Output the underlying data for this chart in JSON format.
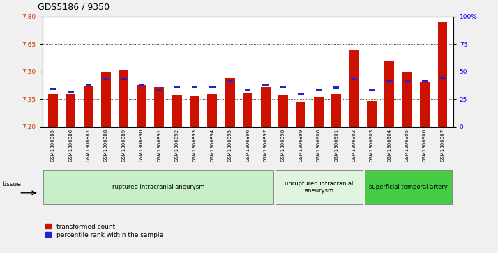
{
  "title": "GDS5186 / 9350",
  "samples": [
    "GSM1306885",
    "GSM1306886",
    "GSM1306887",
    "GSM1306888",
    "GSM1306889",
    "GSM1306890",
    "GSM1306891",
    "GSM1306892",
    "GSM1306893",
    "GSM1306894",
    "GSM1306895",
    "GSM1306896",
    "GSM1306897",
    "GSM1306898",
    "GSM1306899",
    "GSM1306900",
    "GSM1306901",
    "GSM1306902",
    "GSM1306903",
    "GSM1306904",
    "GSM1306905",
    "GSM1306906",
    "GSM1306907"
  ],
  "red_values": [
    7.375,
    7.375,
    7.42,
    7.495,
    7.505,
    7.425,
    7.415,
    7.37,
    7.365,
    7.375,
    7.465,
    7.38,
    7.415,
    7.37,
    7.335,
    7.36,
    7.375,
    7.615,
    7.34,
    7.56,
    7.495,
    7.445,
    7.77
  ],
  "blue_percentiles": [
    33,
    30,
    37,
    42,
    42,
    37,
    32,
    35,
    35,
    35,
    40,
    32,
    37,
    35,
    28,
    32,
    34,
    42,
    32,
    40,
    40,
    40,
    43
  ],
  "ylim": [
    7.2,
    7.8
  ],
  "yticks_left": [
    7.2,
    7.35,
    7.5,
    7.65,
    7.8
  ],
  "yticks_right": [
    0,
    25,
    50,
    75,
    100
  ],
  "ytick_labels_right": [
    "0",
    "25",
    "50",
    "75",
    "100%"
  ],
  "groups": [
    {
      "label": "ruptured intracranial aneurysm",
      "start": 0,
      "end": 13,
      "color": "#c8f0c8"
    },
    {
      "label": "unruptured intracranial\naneurysm",
      "start": 13,
      "end": 18,
      "color": "#e0f5e0"
    },
    {
      "label": "superficial temporal artery",
      "start": 18,
      "end": 23,
      "color": "#44cc44"
    }
  ],
  "red_color": "#cc1100",
  "blue_color": "#2222cc",
  "bar_width": 0.55,
  "tissue_label": "tissue",
  "legend_red": "transformed count",
  "legend_blue": "percentile rank within the sample",
  "fig_bg": "#f0f0f0",
  "plot_bg": "#ffffff",
  "xtick_bg": "#d0d0d0",
  "title_fontsize": 9,
  "tick_fontsize": 6.5,
  "sample_fontsize": 5.0
}
